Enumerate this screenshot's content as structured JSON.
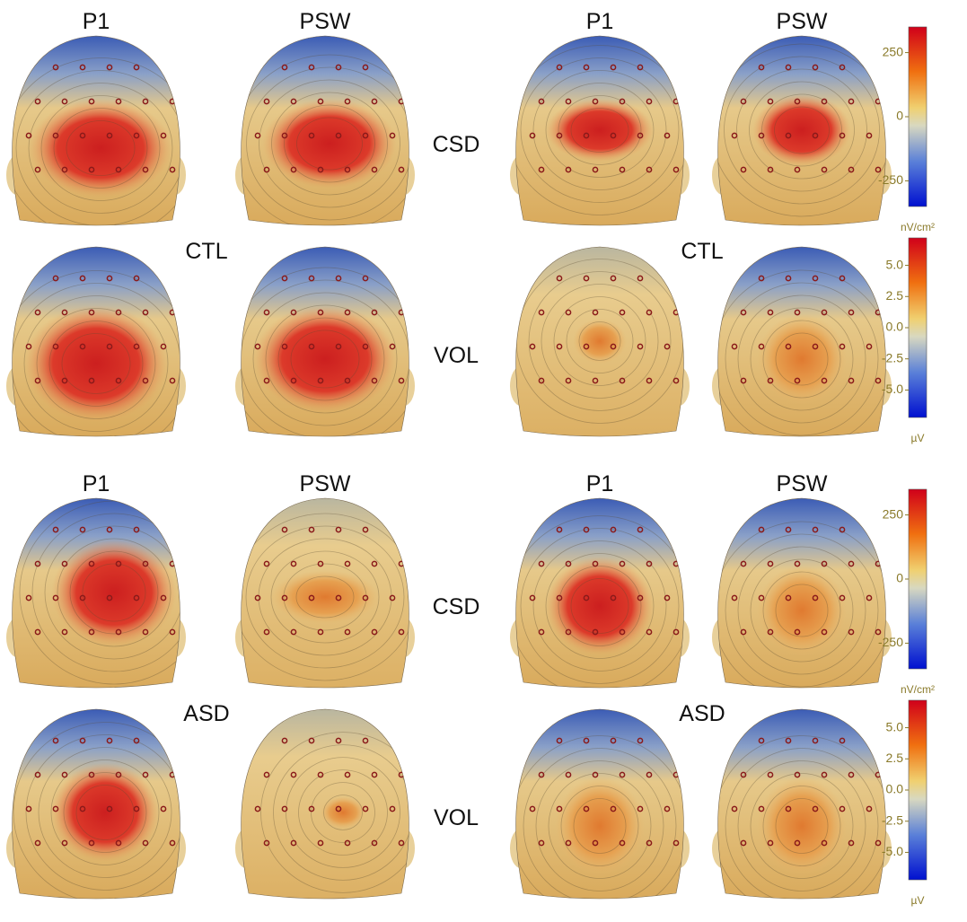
{
  "groups": [
    {
      "label": "CTL",
      "headers": [
        "P1",
        "PSW",
        "P1",
        "PSW"
      ],
      "rows": [
        {
          "label": "CSD",
          "colorbar": {
            "lim": [
              -350,
              350
            ],
            "ticks": [
              250,
              0,
              -250
            ],
            "unit": "nV/cm²"
          }
        },
        {
          "label": "VOL",
          "colorbar": {
            "lim": [
              -7.2,
              7.2
            ],
            "ticks": [
              {
                "value": 5,
                "label": "5.0"
              },
              2.5,
              {
                "value": 0,
                "label": "0.0"
              },
              -2.5,
              {
                "value": -5,
                "label": "-5.0"
              }
            ],
            "unit": "µV"
          }
        }
      ]
    },
    {
      "label": "ASD",
      "headers": [
        "P1",
        "PSW",
        "P1",
        "PSW"
      ],
      "rows": [
        {
          "label": "CSD",
          "colorbar": {
            "lim": [
              -350,
              350
            ],
            "ticks": [
              250,
              0,
              -250
            ],
            "unit": "nV/cm²"
          }
        },
        {
          "label": "VOL",
          "colorbar": {
            "lim": [
              -7.2,
              7.2
            ],
            "ticks": [
              {
                "value": 5,
                "label": "5.0"
              },
              2.5,
              {
                "value": 0,
                "label": "0.0"
              },
              -2.5,
              {
                "value": -5,
                "label": "-5.0"
              }
            ],
            "unit": "µV"
          }
        }
      ]
    }
  ]
}
